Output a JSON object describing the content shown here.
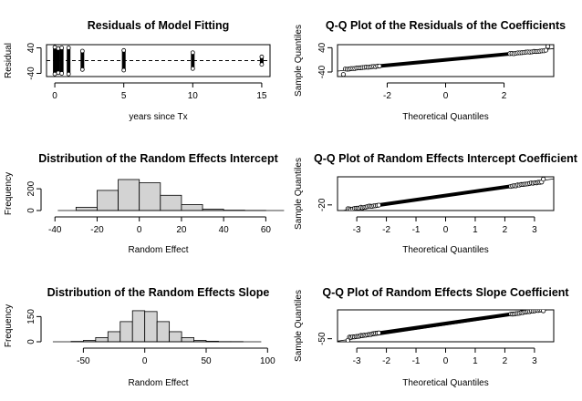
{
  "chart_data": [
    {
      "id": "residuals",
      "type": "scatter",
      "title": "Residuals of Model Fitting",
      "xlabel": "years since Tx",
      "ylabel": "Residual",
      "xlim": [
        -0.6,
        15.6
      ],
      "ylim": [
        -50,
        50
      ],
      "xticks": [
        0,
        5,
        10,
        15
      ],
      "yticks": [
        -40,
        40
      ],
      "x_groups": [
        {
          "x": 0,
          "ymin": -42,
          "ymax": 42
        },
        {
          "x": 0.25,
          "ymin": -38,
          "ymax": 38
        },
        {
          "x": 0.5,
          "ymin": -40,
          "ymax": 40
        },
        {
          "x": 1,
          "ymin": -42,
          "ymax": 40
        },
        {
          "x": 2,
          "ymin": -28,
          "ymax": 30
        },
        {
          "x": 5,
          "ymin": -30,
          "ymax": 32
        },
        {
          "x": 10,
          "ymin": -25,
          "ymax": 25
        },
        {
          "x": 15,
          "ymin": -12,
          "ymax": 12
        }
      ],
      "hline": 0,
      "frame": true
    },
    {
      "id": "qq-residuals",
      "type": "scatter",
      "title": "Q-Q Plot of the Residuals of the Coefficients",
      "xlabel": "Theoretical Quantiles",
      "ylabel": "Sample Quantiles",
      "xlim": [
        -3.7,
        3.7
      ],
      "ylim": [
        -55,
        50
      ],
      "xticks": [
        -2,
        0,
        2
      ],
      "yticks": [
        -40,
        40
      ],
      "qq": {
        "xmin": -3.5,
        "xmax": 3.5,
        "slope": 9,
        "tail_low": -48,
        "tail_high": 44
      },
      "ref_line": {
        "intercept": 0,
        "slope": 10
      },
      "frame": true
    },
    {
      "id": "hist-intercept",
      "type": "bar",
      "title": "Distribution of the Random Effects Intercept",
      "xlabel": "Random Effect",
      "ylabel": "Frequency",
      "xlim": [
        -44,
        62
      ],
      "ylim": [
        0,
        310
      ],
      "xticks": [
        -40,
        -20,
        0,
        20,
        40,
        60
      ],
      "yticks": [
        0,
        200
      ],
      "bins": [
        {
          "x0": -30,
          "x1": -20,
          "value": 30
        },
        {
          "x0": -20,
          "x1": -10,
          "value": 185
        },
        {
          "x0": -10,
          "x1": 0,
          "value": 285
        },
        {
          "x0": 0,
          "x1": 10,
          "value": 255
        },
        {
          "x0": 10,
          "x1": 20,
          "value": 140
        },
        {
          "x0": 20,
          "x1": 30,
          "value": 55
        },
        {
          "x0": 30,
          "x1": 40,
          "value": 12
        },
        {
          "x0": 40,
          "x1": 50,
          "value": 3
        },
        {
          "x0": 50,
          "x1": 60,
          "value": 1
        }
      ],
      "frame": false
    },
    {
      "id": "qq-intercept",
      "type": "scatter",
      "title": "Q-Q Plot of Random Effects Intercept Coefficient",
      "xlabel": "Theoretical Quantiles",
      "ylabel": "Sample Quantiles",
      "xlim": [
        -3.65,
        3.65
      ],
      "ylim": [
        -32,
        40
      ],
      "xticks": [
        -3,
        -2,
        -1,
        0,
        1,
        2,
        3
      ],
      "yticks": [
        -20
      ],
      "qq": {
        "xmin": -3.3,
        "xmax": 3.3,
        "slope": 9,
        "tail_low": -28,
        "tail_high": 35
      },
      "ref_line": {
        "intercept": 1,
        "slope": 9.5
      },
      "frame": true
    },
    {
      "id": "hist-slope",
      "type": "bar",
      "title": "Distribution of the Random Effects Slope",
      "xlabel": "Random Effect",
      "ylabel": "Frequency",
      "xlim": [
        -80,
        102
      ],
      "ylim": [
        0,
        190
      ],
      "xticks": [
        -50,
        0,
        50,
        100
      ],
      "yticks": [
        0,
        150
      ],
      "bins": [
        {
          "x0": -60,
          "x1": -50,
          "value": 2
        },
        {
          "x0": -50,
          "x1": -40,
          "value": 8
        },
        {
          "x0": -40,
          "x1": -30,
          "value": 25
        },
        {
          "x0": -30,
          "x1": -20,
          "value": 60
        },
        {
          "x0": -20,
          "x1": -10,
          "value": 120
        },
        {
          "x0": -10,
          "x1": 0,
          "value": 185
        },
        {
          "x0": 0,
          "x1": 10,
          "value": 180
        },
        {
          "x0": 10,
          "x1": 20,
          "value": 120
        },
        {
          "x0": 20,
          "x1": 30,
          "value": 60
        },
        {
          "x0": 30,
          "x1": 40,
          "value": 25
        },
        {
          "x0": 40,
          "x1": 50,
          "value": 8
        },
        {
          "x0": 50,
          "x1": 60,
          "value": 3
        },
        {
          "x0": 60,
          "x1": 70,
          "value": 1
        },
        {
          "x0": 70,
          "x1": 80,
          "value": 1
        }
      ],
      "frame": false
    },
    {
      "id": "qq-slope",
      "type": "scatter",
      "title": "Q-Q Plot of Random Effects Slope Coefficient",
      "xlabel": "Theoretical Quantiles",
      "ylabel": "Sample Quantiles",
      "xlim": [
        -3.65,
        3.65
      ],
      "ylim": [
        -60,
        45
      ],
      "xticks": [
        -3,
        -2,
        -1,
        0,
        1,
        2,
        3
      ],
      "yticks": [
        -50
      ],
      "qq": {
        "xmin": -3.3,
        "xmax": 3.3,
        "slope": 14,
        "tail_low": -55,
        "tail_high": 42
      },
      "ref_line": {
        "intercept": -5,
        "slope": 14.5
      },
      "frame": true
    }
  ]
}
